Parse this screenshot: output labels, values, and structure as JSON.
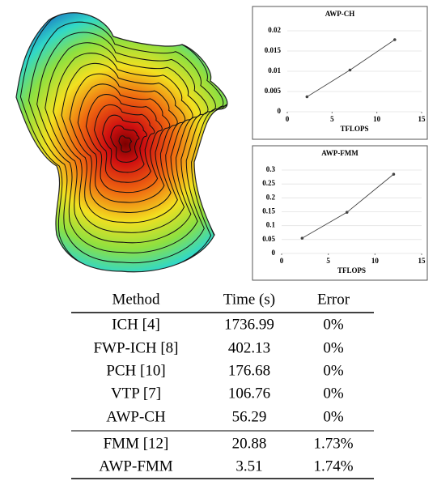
{
  "chart_data": [
    {
      "type": "line",
      "title": "AWP-CH",
      "xlabel": "TFLOPS",
      "x": [
        2.2,
        7,
        12
      ],
      "values": [
        0.0037,
        0.0103,
        0.0178
      ],
      "color": "#444444",
      "xlim": [
        0,
        15
      ],
      "xticks": [
        0,
        5,
        10,
        15
      ],
      "ylim": [
        0,
        0.02
      ],
      "yticks": [
        0,
        0.005,
        0.01,
        0.015,
        0.02
      ],
      "grid": true
    },
    {
      "type": "line",
      "title": "AWP-FMM",
      "xlabel": "TFLOPS",
      "x": [
        2.2,
        7,
        12
      ],
      "values": [
        0.055,
        0.148,
        0.285
      ],
      "color": "#444444",
      "xlim": [
        0,
        15
      ],
      "xticks": [
        0,
        5,
        10,
        15
      ],
      "ylim": [
        0,
        0.3
      ],
      "yticks": [
        0,
        0.05,
        0.1,
        0.15,
        0.2,
        0.25,
        0.3
      ],
      "grid": true
    }
  ],
  "table": {
    "header": [
      "Method",
      "Time (s)",
      "Error"
    ],
    "rows": [
      [
        "ICH [4]",
        "1736.99",
        "0%"
      ],
      [
        "FWP-ICH [8]",
        "402.13",
        "0%"
      ],
      [
        "PCH [10]",
        "176.68",
        "0%"
      ],
      [
        "VTP [7]",
        "106.76",
        "0%"
      ],
      [
        "AWP-CH",
        "56.29",
        "0%"
      ],
      [
        "FMM [12]",
        "20.88",
        "1.73%"
      ],
      [
        "AWP-FMM",
        "3.51",
        "1.74%"
      ]
    ]
  }
}
